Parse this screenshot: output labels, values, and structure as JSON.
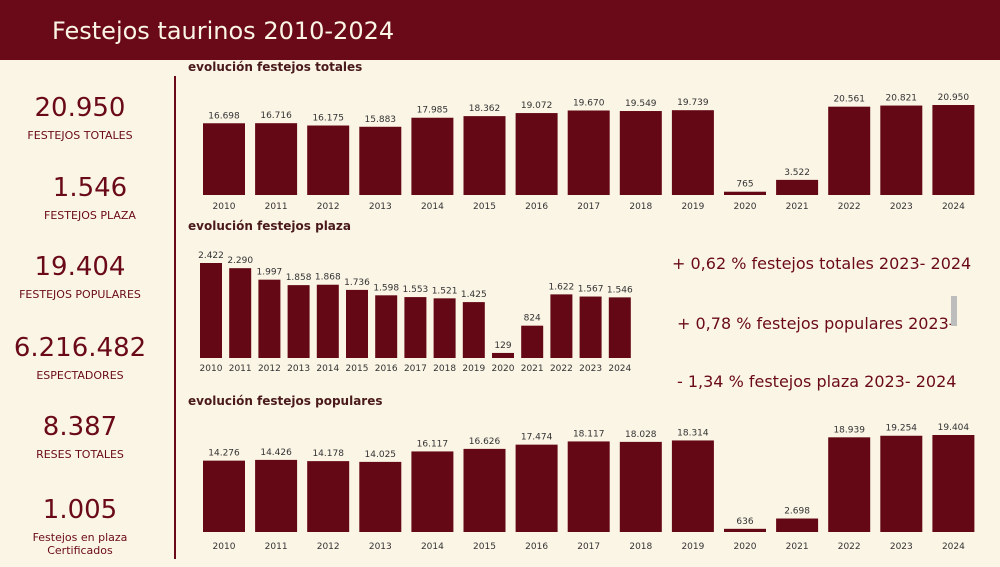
{
  "header": {
    "title": "Festejos taurinos 2010-2024"
  },
  "kpis": [
    {
      "value": "20.950",
      "label": "FESTEJOS TOTALES"
    },
    {
      "value": "1.546",
      "label": "FESTEJOS PLAZA"
    },
    {
      "value": "19.404",
      "label": "FESTEJOS POPULARES"
    },
    {
      "value": "6.216.482",
      "label": "ESPECTADORES"
    },
    {
      "value": "8.387",
      "label": "RESES TOTALES"
    },
    {
      "value": "1.005",
      "label": "Festejos en plaza Certificados"
    }
  ],
  "notes": [
    "+ 0,62 % festejos totales 2023- 2024",
    "+ 0,78 % festejos populares 2023-",
    "- 1,34 % festejos plaza 2023- 2024"
  ],
  "colors": {
    "bar": "#650815",
    "header": "#6a0a19",
    "background": "#fbf5e6"
  },
  "chart_data": [
    {
      "type": "bar",
      "title": "evolución festejos totales",
      "categories": [
        "2010",
        "2011",
        "2012",
        "2013",
        "2014",
        "2015",
        "2016",
        "2017",
        "2018",
        "2019",
        "2020",
        "2021",
        "2022",
        "2023",
        "2024"
      ],
      "values": [
        16698,
        16716,
        16175,
        15883,
        17985,
        18362,
        19072,
        19670,
        19549,
        19739,
        765,
        3522,
        20561,
        20821,
        20950
      ],
      "labels": [
        "16.698",
        "16.716",
        "16.175",
        "15.883",
        "17.985",
        "18.362",
        "19.072",
        "19.670",
        "19.549",
        "19.739",
        "765",
        "3.522",
        "20.561",
        "20.821",
        "20.950"
      ]
    },
    {
      "type": "bar",
      "title": "evolución festejos plaza",
      "categories": [
        "2010",
        "2011",
        "2012",
        "2013",
        "2014",
        "2015",
        "2016",
        "2017",
        "2018",
        "2019",
        "2020",
        "2021",
        "2022",
        "2023",
        "2024"
      ],
      "values": [
        2422,
        2290,
        1997,
        1858,
        1868,
        1736,
        1598,
        1553,
        1521,
        1425,
        129,
        824,
        1622,
        1567,
        1546
      ],
      "labels": [
        "2.422",
        "2.290",
        "1.997",
        "1.858",
        "1.868",
        "1.736",
        "1.598",
        "1.553",
        "1.521",
        "1.425",
        "129",
        "824",
        "1.622",
        "1.567",
        "1.546"
      ]
    },
    {
      "type": "bar",
      "title": "evolución festejos populares",
      "categories": [
        "2010",
        "2011",
        "2012",
        "2013",
        "2014",
        "2015",
        "2016",
        "2017",
        "2018",
        "2019",
        "2020",
        "2021",
        "2022",
        "2023",
        "2024"
      ],
      "values": [
        14276,
        14426,
        14178,
        14025,
        16117,
        16626,
        17474,
        18117,
        18028,
        18314,
        636,
        2698,
        18939,
        19254,
        19404
      ],
      "labels": [
        "14.276",
        "14.426",
        "14.178",
        "14.025",
        "16.117",
        "16.626",
        "17.474",
        "18.117",
        "18.028",
        "18.314",
        "636",
        "2.698",
        "18.939",
        "19.254",
        "19.404"
      ]
    }
  ]
}
